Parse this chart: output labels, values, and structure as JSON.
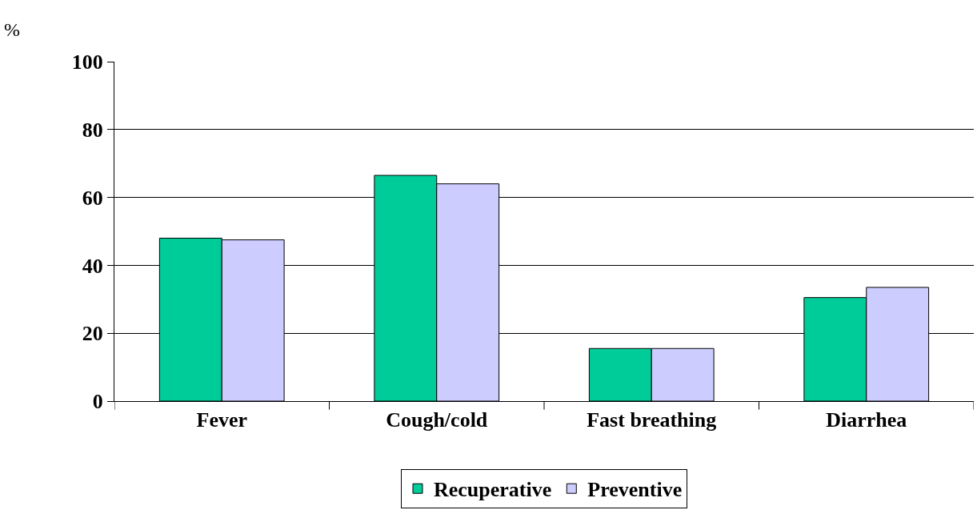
{
  "chart_data": {
    "type": "bar",
    "ylabel": "%",
    "categories": [
      "Fever",
      "Cough/cold",
      "Fast breathing",
      "Diarrhea"
    ],
    "series": [
      {
        "name": "Recuperative",
        "color": "#00cc99",
        "values": [
          48,
          66.5,
          15.5,
          30.5
        ]
      },
      {
        "name": "Preventive",
        "color": "#ccccff",
        "values": [
          47.5,
          64,
          15.5,
          33.5
        ]
      }
    ],
    "ylim": [
      0,
      100
    ],
    "yticks": [
      0,
      20,
      40,
      60,
      80,
      100
    ],
    "grid": "y",
    "legend": "bottom"
  }
}
